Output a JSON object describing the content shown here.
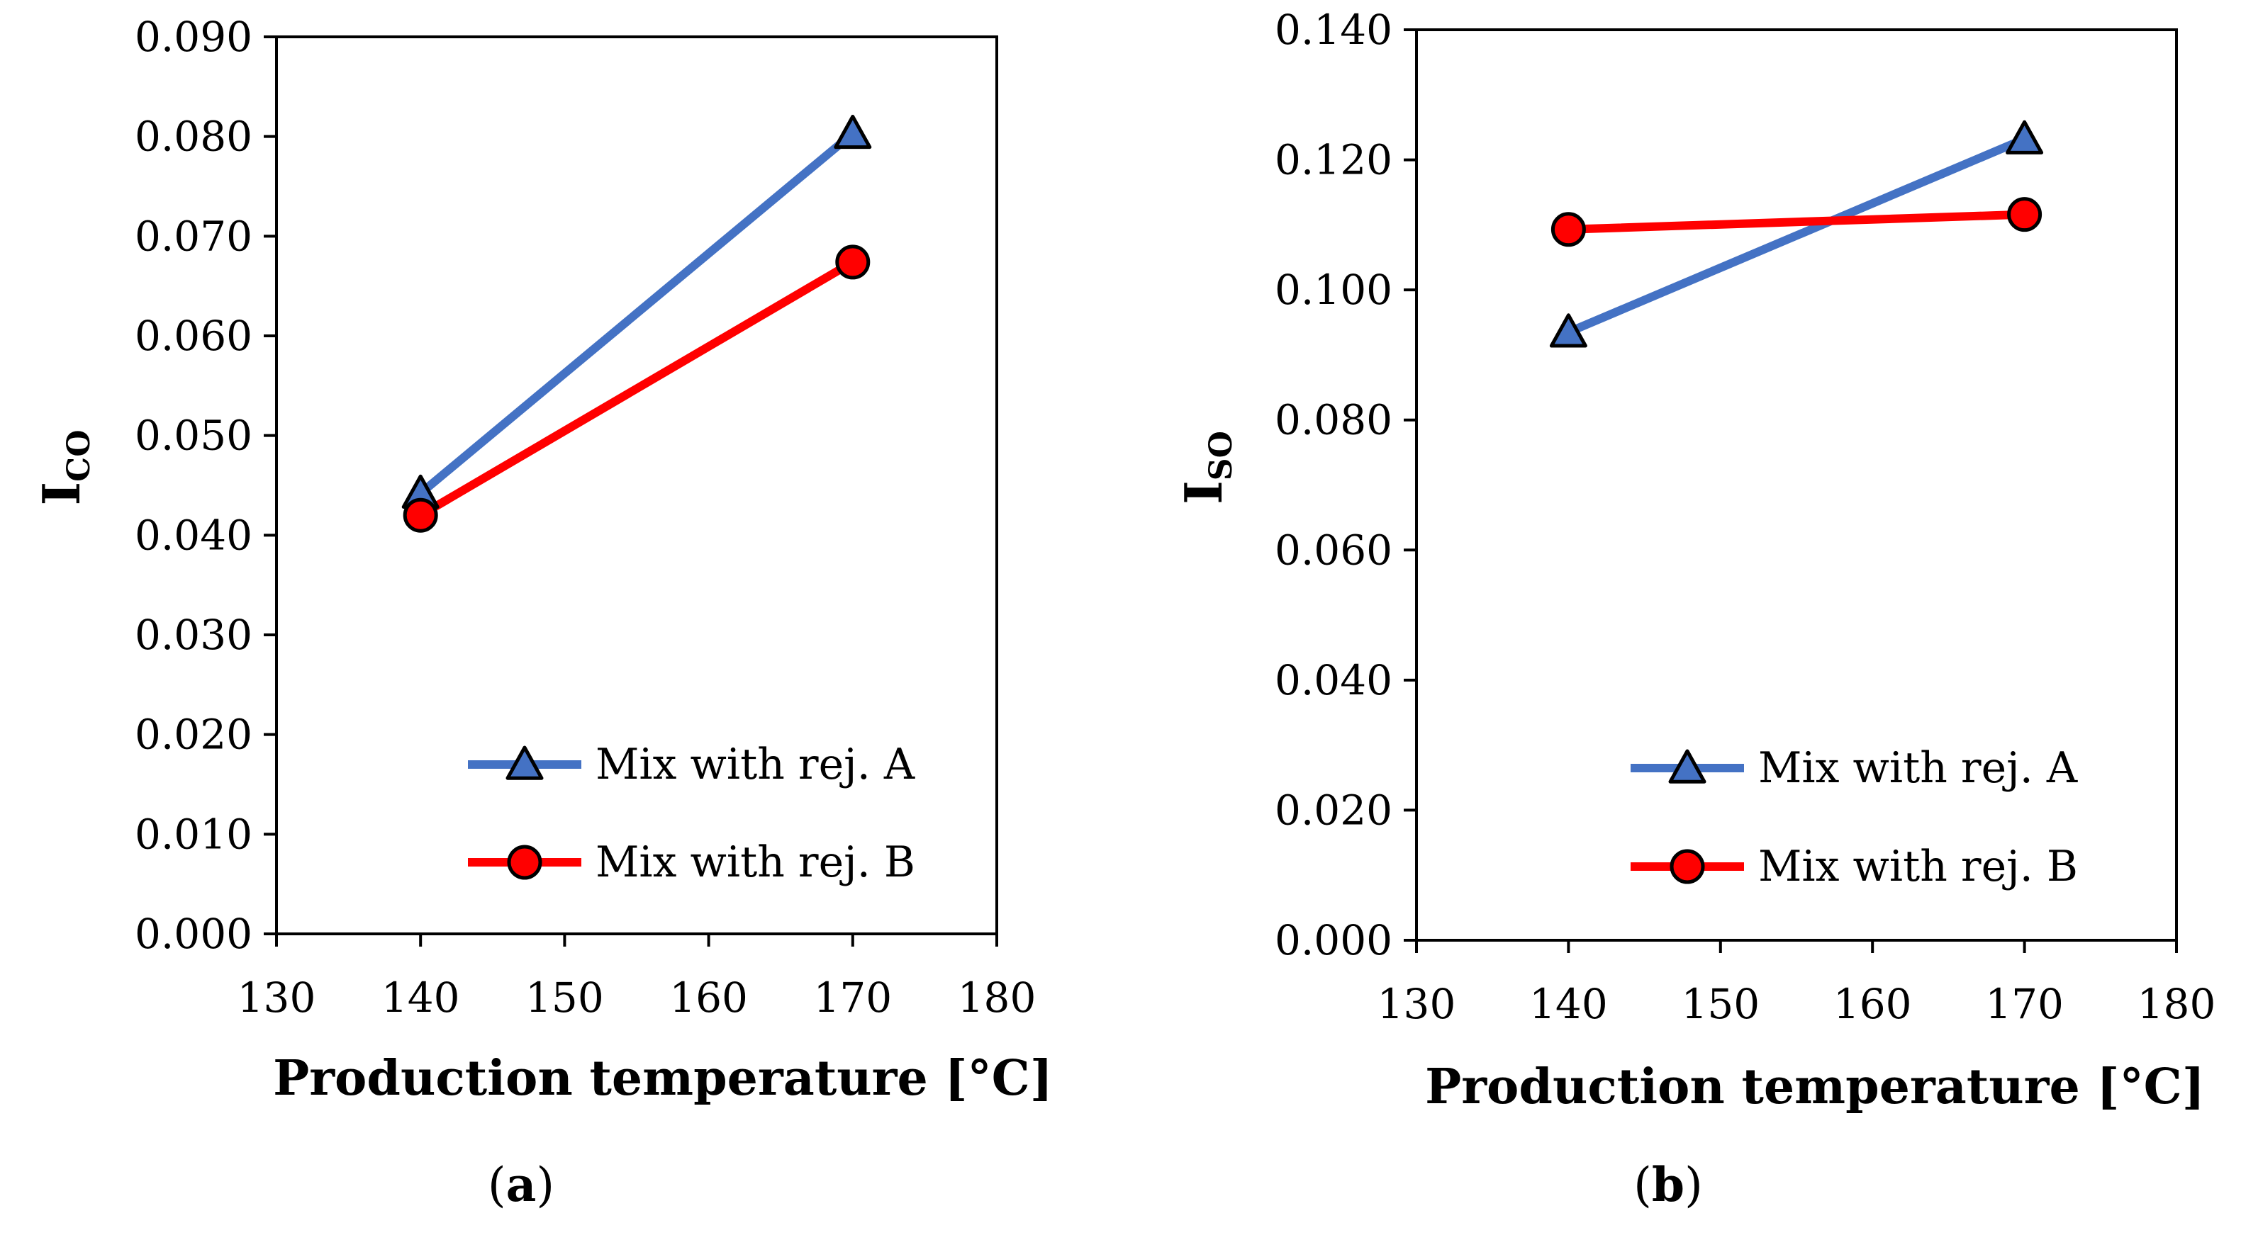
{
  "chart_data": [
    {
      "type": "line",
      "panel_label": "a",
      "title": "",
      "xlabel": "Production temperature [°C]",
      "ylabel_main": "I",
      "ylabel_sub": "CO",
      "xlim": [
        130,
        180
      ],
      "ylim": [
        0.0,
        0.09
      ],
      "xticks": [
        130,
        140,
        150,
        160,
        170,
        180
      ],
      "yticks": [
        0.0,
        0.01,
        0.02,
        0.03,
        0.04,
        0.05,
        0.06,
        0.07,
        0.08,
        0.09
      ],
      "ytick_labels": [
        "0.000",
        "0.010",
        "0.020",
        "0.030",
        "0.040",
        "0.050",
        "0.060",
        "0.070",
        "0.080",
        "0.090"
      ],
      "grid": false,
      "legend_position": "bottom-right",
      "series": [
        {
          "name": "Mix with rej. A",
          "marker": "triangle",
          "color": "#4472C4",
          "x": [
            140,
            170
          ],
          "values": [
            0.0442,
            0.0803
          ]
        },
        {
          "name": "Mix with rej. B",
          "marker": "circle",
          "color": "#FF0000",
          "x": [
            140,
            170
          ],
          "values": [
            0.042,
            0.0674
          ]
        }
      ]
    },
    {
      "type": "line",
      "panel_label": "b",
      "title": "",
      "xlabel": "Production temperature [°C]",
      "ylabel_main": "I",
      "ylabel_sub": "SO",
      "xlim": [
        130,
        180
      ],
      "ylim": [
        0.0,
        0.14
      ],
      "xticks": [
        130,
        140,
        150,
        160,
        170,
        180
      ],
      "yticks": [
        0.0,
        0.02,
        0.04,
        0.06,
        0.08,
        0.1,
        0.12,
        0.14
      ],
      "ytick_labels": [
        "0.000",
        "0.020",
        "0.040",
        "0.060",
        "0.080",
        "0.100",
        "0.120",
        "0.140"
      ],
      "grid": false,
      "legend_position": "bottom-right",
      "series": [
        {
          "name": "Mix with rej. A",
          "marker": "triangle",
          "color": "#4472C4",
          "x": [
            140,
            170
          ],
          "values": [
            0.0935,
            0.1232
          ]
        },
        {
          "name": "Mix with rej. B",
          "marker": "circle",
          "color": "#FF0000",
          "x": [
            140,
            170
          ],
          "values": [
            0.1093,
            0.1116
          ]
        }
      ]
    }
  ]
}
